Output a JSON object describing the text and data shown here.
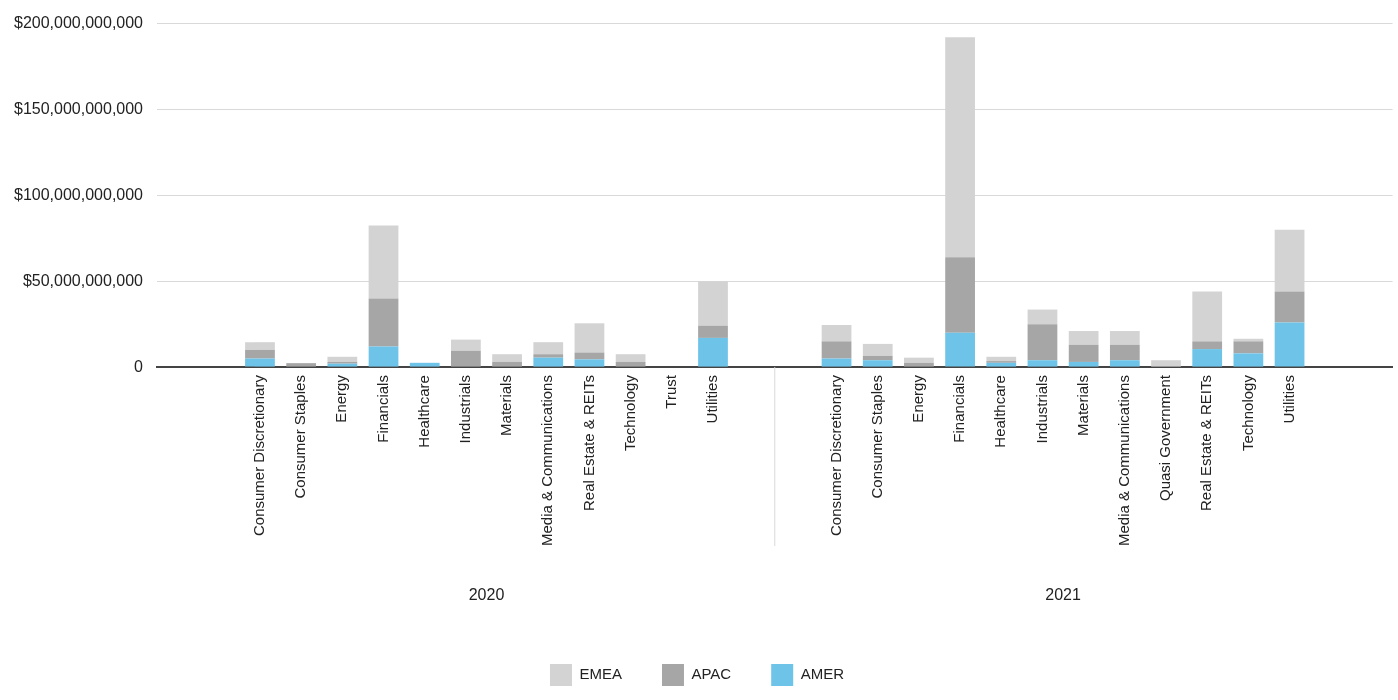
{
  "chart_data": {
    "type": "bar",
    "stacked": true,
    "categories": [
      null,
      null,
      "Consumer Discretionary",
      "Consumer Staples",
      "Energy",
      "Financials",
      "Healthcare",
      "Industrials",
      "Materials",
      "Media & Communications",
      "Real Estate & REITs",
      "Technology",
      "Trust",
      "Utilities",
      null,
      null,
      "Consumer Discretionary",
      "Consumer Staples",
      "Energy",
      "Financials",
      "Healthcare",
      "Industrials",
      "Materials",
      "Media & Communications",
      "Quasi Government",
      "Real Estate & REITs",
      "Technology",
      "Utilities",
      null,
      null
    ],
    "series": [
      {
        "name": "AMER",
        "color": "#6ec3e8",
        "values": [
          null,
          null,
          5000000000,
          0,
          2000000000,
          12000000000,
          2500000000,
          0,
          0,
          5500000000,
          4500000000,
          0,
          0,
          17000000000,
          null,
          null,
          5000000000,
          4000000000,
          0,
          20000000000,
          2500000000,
          4000000000,
          3000000000,
          4000000000,
          0,
          10500000000,
          8000000000,
          26000000000,
          null,
          null
        ]
      },
      {
        "name": "APAC",
        "color": "#a6a6a6",
        "values": [
          null,
          null,
          5000000000,
          2300000000,
          1000000000,
          28000000000,
          0,
          9500000000,
          3000000000,
          2000000000,
          4000000000,
          3000000000,
          0,
          7000000000,
          null,
          null,
          10000000000,
          2500000000,
          2500000000,
          44000000000,
          1000000000,
          21000000000,
          10000000000,
          9000000000,
          0,
          4500000000,
          7000000000,
          18000000000,
          null,
          null
        ]
      },
      {
        "name": "EMEA",
        "color": "#d3d3d3",
        "values": [
          null,
          null,
          4500000000,
          0,
          3000000000,
          42500000000,
          0,
          6500000000,
          4500000000,
          7000000000,
          17000000000,
          4500000000,
          0,
          26000000000,
          null,
          null,
          9500000000,
          7000000000,
          3000000000,
          128000000000,
          2500000000,
          8500000000,
          8000000000,
          8000000000,
          4000000000,
          29000000000,
          1500000000,
          36000000000,
          null,
          null
        ]
      }
    ],
    "ylim": [
      0,
      200000000000
    ],
    "yticks": [
      {
        "value": 0,
        "label": "0"
      },
      {
        "value": 50000000000,
        "label": "$50,000,000,000"
      },
      {
        "value": 100000000000,
        "label": "$100,000,000,000"
      },
      {
        "value": 150000000000,
        "label": "$150,000,000,000"
      },
      {
        "value": 200000000000,
        "label": "$200,000,000,000"
      }
    ],
    "grid": "y",
    "legend": "bottom",
    "annotations": [
      "2020",
      "2021"
    ]
  }
}
